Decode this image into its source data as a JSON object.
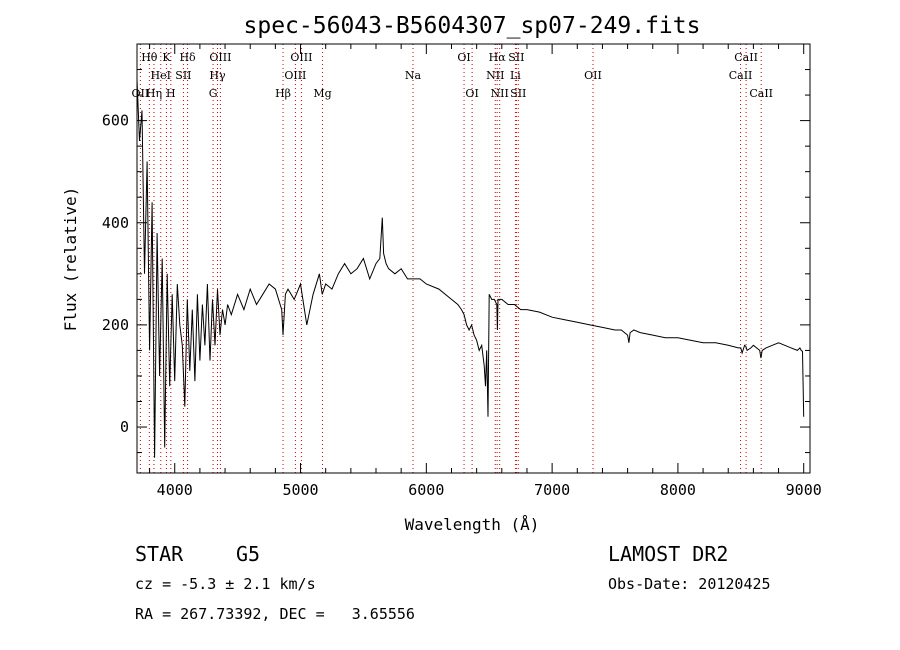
{
  "chart_data": {
    "type": "line",
    "title": "spec-56043-B5604307_sp07-249.fits",
    "xlabel": "Wavelength (Å)",
    "ylabel": "Flux (relative)",
    "xlim": [
      3700,
      9050
    ],
    "ylim": [
      -90,
      750
    ],
    "x_ticks": [
      4000,
      5000,
      6000,
      7000,
      8000,
      9000
    ],
    "y_ticks": [
      0,
      200,
      400,
      600
    ],
    "grid": false,
    "spectrum": {
      "x": [
        3700,
        3720,
        3740,
        3760,
        3780,
        3800,
        3820,
        3840,
        3860,
        3880,
        3900,
        3920,
        3940,
        3960,
        3980,
        4000,
        4020,
        4040,
        4060,
        4080,
        4100,
        4120,
        4140,
        4160,
        4180,
        4200,
        4220,
        4240,
        4260,
        4280,
        4300,
        4320,
        4340,
        4360,
        4380,
        4400,
        4420,
        4450,
        4500,
        4550,
        4600,
        4650,
        4700,
        4750,
        4800,
        4850,
        4861,
        4880,
        4900,
        4950,
        5000,
        5050,
        5100,
        5150,
        5172,
        5200,
        5250,
        5300,
        5350,
        5400,
        5450,
        5500,
        5550,
        5600,
        5630,
        5650,
        5660,
        5680,
        5700,
        5750,
        5800,
        5850,
        5890,
        5950,
        6000,
        6100,
        6200,
        6250,
        6280,
        6300,
        6320,
        6340,
        6360,
        6380,
        6400,
        6420,
        6440,
        6460,
        6470,
        6480,
        6490,
        6500,
        6520,
        6540,
        6560,
        6565,
        6570,
        6580,
        6600,
        6650,
        6700,
        6750,
        6800,
        6900,
        7000,
        7100,
        7200,
        7300,
        7400,
        7500,
        7550,
        7600,
        7610,
        7620,
        7650,
        7700,
        7800,
        7900,
        8000,
        8100,
        8200,
        8300,
        8400,
        8480,
        8500,
        8510,
        8530,
        8540,
        8550,
        8580,
        8600,
        8650,
        8660,
        8670,
        8700,
        8750,
        8800,
        8850,
        8900,
        8950,
        8970,
        8980,
        8990,
        9000
      ],
      "y": [
        680,
        560,
        620,
        300,
        520,
        150,
        440,
        -60,
        380,
        100,
        330,
        -40,
        300,
        80,
        260,
        90,
        280,
        200,
        160,
        40,
        250,
        110,
        230,
        90,
        260,
        130,
        240,
        160,
        280,
        130,
        250,
        160,
        270,
        180,
        230,
        200,
        240,
        220,
        260,
        230,
        270,
        240,
        260,
        280,
        270,
        230,
        180,
        260,
        270,
        250,
        280,
        200,
        260,
        300,
        260,
        280,
        270,
        300,
        320,
        300,
        310,
        330,
        290,
        320,
        330,
        410,
        340,
        320,
        310,
        300,
        310,
        290,
        290,
        290,
        280,
        270,
        250,
        240,
        230,
        220,
        200,
        190,
        200,
        180,
        170,
        150,
        160,
        120,
        80,
        150,
        20,
        260,
        250,
        250,
        240,
        190,
        250,
        250,
        250,
        240,
        240,
        230,
        230,
        225,
        215,
        210,
        205,
        200,
        195,
        190,
        190,
        180,
        165,
        185,
        190,
        185,
        180,
        175,
        175,
        170,
        165,
        165,
        160,
        155,
        155,
        145,
        160,
        158,
        150,
        155,
        160,
        150,
        135,
        150,
        155,
        160,
        165,
        160,
        155,
        150,
        155,
        150,
        148,
        20
      ]
    },
    "lines": [
      {
        "label": "OII",
        "wave": 3727,
        "row": 3
      },
      {
        "label": "Hθ",
        "wave": 3798,
        "row": 1
      },
      {
        "label": "K",
        "wave": 3934,
        "row": 1
      },
      {
        "label": "HeI",
        "wave": 3889,
        "row": 2
      },
      {
        "label": "Hη",
        "wave": 3835,
        "row": 3
      },
      {
        "label": "SII",
        "wave": 4069,
        "row": 2
      },
      {
        "label": "H",
        "wave": 3969,
        "row": 3
      },
      {
        "label": "Hδ",
        "wave": 4102,
        "row": 1
      },
      {
        "label": "OIII",
        "wave": 4363,
        "row": 1
      },
      {
        "label": "Hγ",
        "wave": 4340,
        "row": 2
      },
      {
        "label": "G",
        "wave": 4305,
        "row": 3
      },
      {
        "label": "Hβ",
        "wave": 4861,
        "row": 3
      },
      {
        "label": "OIII",
        "wave": 5007,
        "row": 1
      },
      {
        "label": "OIII",
        "wave": 4959,
        "row": 2
      },
      {
        "label": "Mg",
        "wave": 5175,
        "row": 3
      },
      {
        "label": "Na",
        "wave": 5894,
        "row": 2
      },
      {
        "label": "OI",
        "wave": 6300,
        "row": 1
      },
      {
        "label": "OI",
        "wave": 6364,
        "row": 3
      },
      {
        "label": "Hα",
        "wave": 6563,
        "row": 1
      },
      {
        "label": "SII",
        "wave": 6716,
        "row": 1
      },
      {
        "label": "NII",
        "wave": 6548,
        "row": 2
      },
      {
        "label": "Li",
        "wave": 6708,
        "row": 2
      },
      {
        "label": "NII",
        "wave": 6583,
        "row": 3
      },
      {
        "label": "SII",
        "wave": 6731,
        "row": 3
      },
      {
        "label": "OII",
        "wave": 7325,
        "row": 2
      },
      {
        "label": "CaII",
        "wave": 8542,
        "row": 1
      },
      {
        "label": "CaII",
        "wave": 8498,
        "row": 2
      },
      {
        "label": "CaII",
        "wave": 8662,
        "row": 3
      }
    ]
  },
  "info": {
    "object_class": "STAR",
    "subclass": "G5",
    "survey": "LAMOST DR2",
    "redshift": "cz = -5.3 ± 2.1 km/s",
    "obs_date": "Obs-Date: 20120425",
    "coords": "RA = 267.73392, DEC =   3.65556"
  },
  "colors": {
    "line_marker": "#cc0000",
    "spectrum": "#000000",
    "axis": "#000000"
  }
}
